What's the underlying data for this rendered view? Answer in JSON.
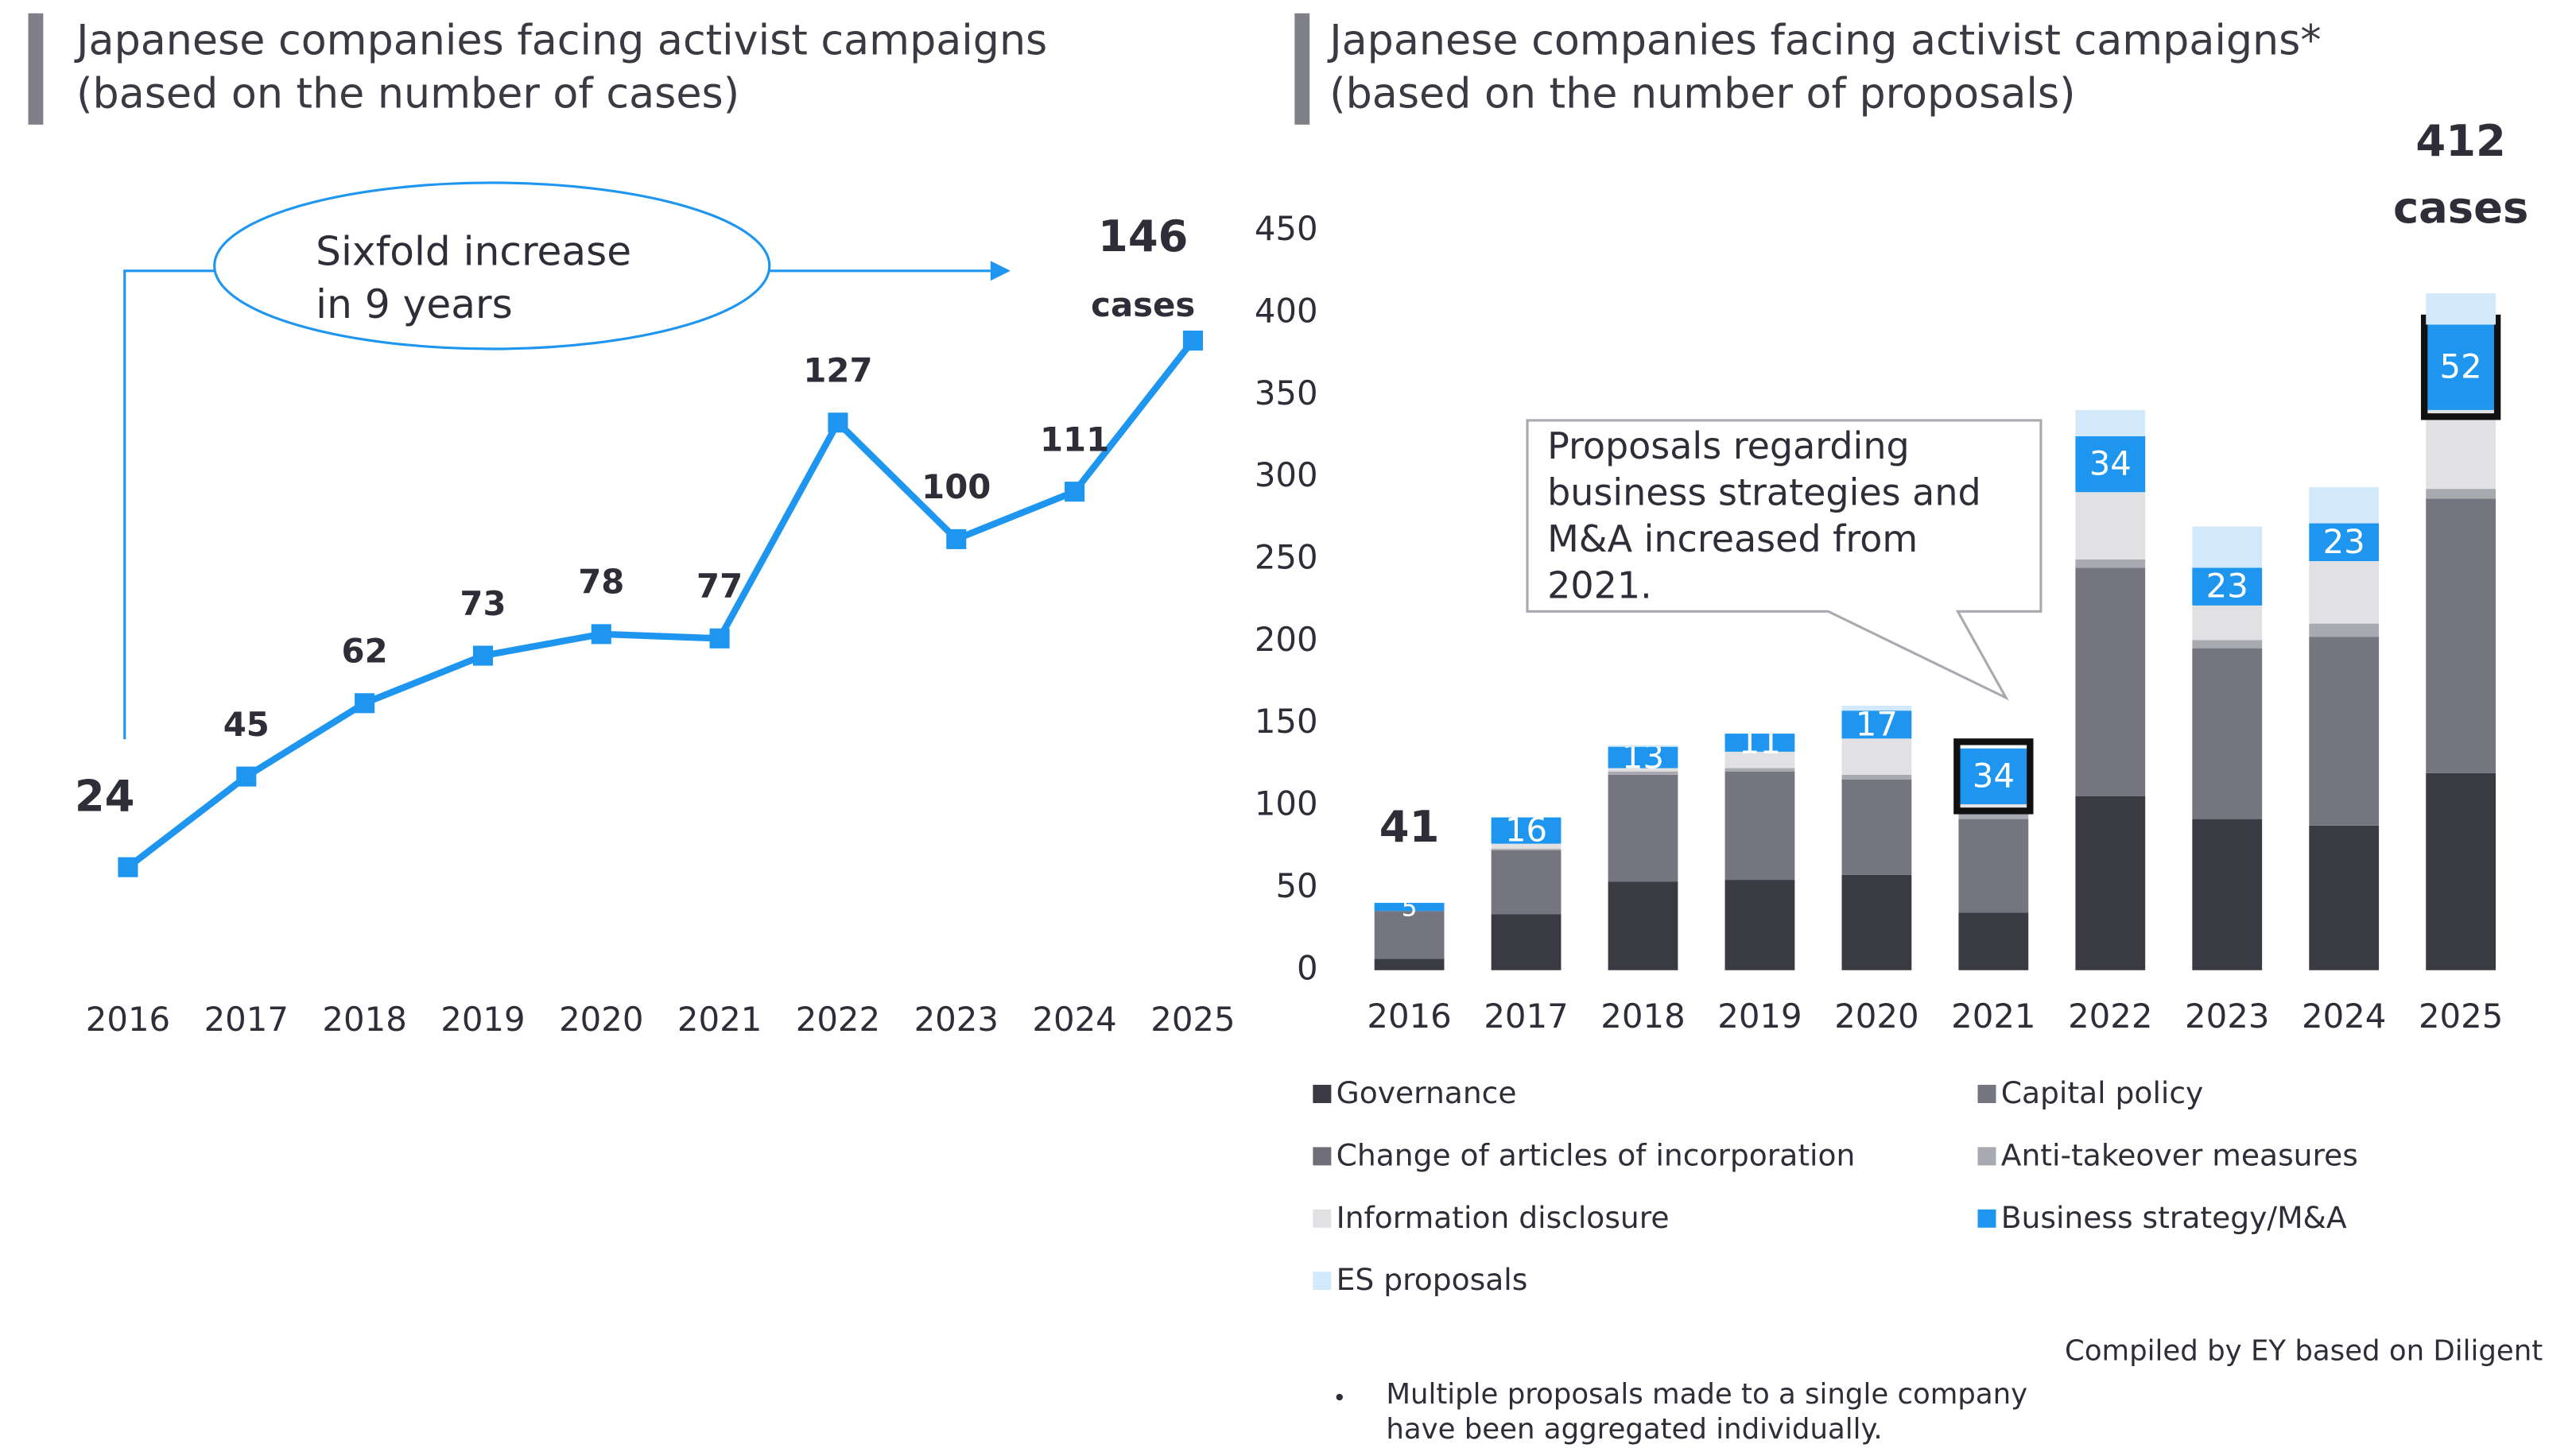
{
  "chart_data": [
    {
      "type": "line",
      "title": "Japanese companies facing activist campaigns",
      "subtitle": "(based on the number of cases)",
      "categories": [
        "2016",
        "2017",
        "2018",
        "2019",
        "2020",
        "2021",
        "2022",
        "2023",
        "2024",
        "2025"
      ],
      "values": [
        24,
        45,
        62,
        73,
        78,
        77,
        127,
        100,
        111,
        146
      ],
      "color": "#1e96f0",
      "annotation": [
        "Sixfold increase",
        "in 9 years"
      ],
      "unit_label": "cases"
    },
    {
      "type": "bar",
      "stacked": true,
      "title": "Japanese companies facing activist campaigns*",
      "subtitle": "(based on the number of proposals)",
      "categories": [
        "2016",
        "2017",
        "2018",
        "2019",
        "2020",
        "2021",
        "2022",
        "2023",
        "2024",
        "2025"
      ],
      "series": [
        {
          "name": "Governance",
          "color": "#3a3a42",
          "values": [
            7,
            34,
            54,
            55,
            58,
            35,
            106,
            92,
            88,
            120
          ]
        },
        {
          "name": "Capital policy",
          "color": "#75757f",
          "values": [
            29,
            39,
            65,
            66,
            58,
            57,
            139,
            104,
            115,
            167
          ]
        },
        {
          "name": "Change of articles of incorporation",
          "color": "#6e6e78",
          "values": [
            0,
            0,
            0,
            0,
            0,
            0,
            0,
            0,
            0,
            0
          ]
        },
        {
          "name": "Anti-takeover measures",
          "color": "#a9a9b0",
          "values": [
            0,
            1,
            2,
            2,
            3,
            6,
            5,
            5,
            8,
            6
          ]
        },
        {
          "name": "Information disclosure",
          "color": "#e1e1e4",
          "values": [
            0,
            3,
            2,
            10,
            22,
            3,
            41,
            21,
            38,
            48
          ]
        },
        {
          "name": "Business strategy/M&A",
          "color": "#1e96f0",
          "values": [
            5,
            16,
            13,
            11,
            17,
            34,
            34,
            23,
            23,
            52
          ]
        },
        {
          "name": "ES proposals",
          "color": "#d2e9fb",
          "values": [
            0,
            0,
            1,
            0,
            3,
            0,
            16,
            25,
            22,
            19
          ]
        }
      ],
      "ylim": [
        0,
        450
      ],
      "yticks": [
        0,
        50,
        100,
        150,
        200,
        250,
        300,
        350,
        400,
        450
      ],
      "annotation": [
        "Proposals regarding",
        "business strategies and",
        "M&A increased from",
        "2021."
      ],
      "total_labels": [
        {
          "category": "2016",
          "value": 41
        },
        {
          "category": "2025",
          "value": 412
        }
      ],
      "unit_label": "cases",
      "source": "Compiled by EY based on Diligent",
      "note": [
        "Multiple proposals made to a single company",
        "have been aggregated individually."
      ]
    }
  ]
}
